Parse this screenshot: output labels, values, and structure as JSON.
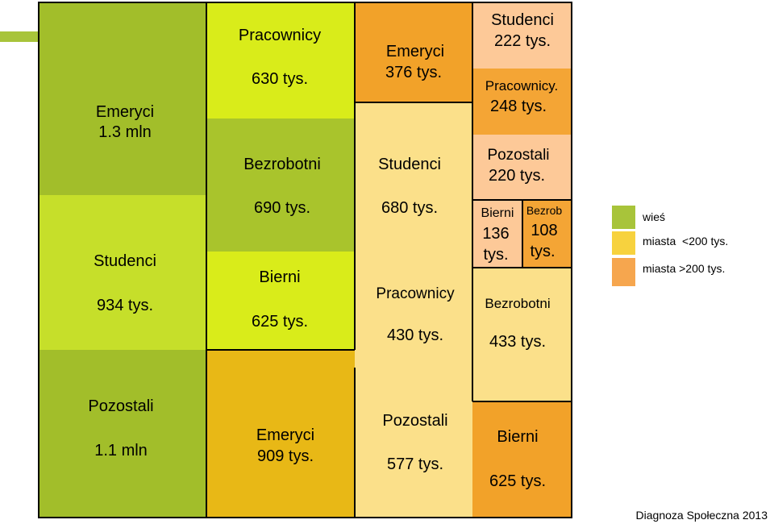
{
  "chart_data": {
    "type": "treemap",
    "cells": [
      {
        "label": "Emeryci",
        "value_text": "1.3 mln",
        "category": "wieś"
      },
      {
        "label": "Studenci",
        "value_text": "934 tys.",
        "category": "wieś"
      },
      {
        "label": "Pozostali",
        "value_text": "1.1 mln",
        "category": "wieś"
      },
      {
        "label": "Pracownicy",
        "value_text": "630 tys.",
        "category": "wieś"
      },
      {
        "label": "Bezrobotni",
        "value_text": "690 tys.",
        "category": "wieś"
      },
      {
        "label": "Bierni",
        "value_text": "625 tys.",
        "category": "wieś"
      },
      {
        "label": "Emeryci",
        "value_text": "376 tys.",
        "category": "miasta >200 tys."
      },
      {
        "label": "Studenci",
        "value_text": "680 tys.",
        "category": "miasta <200 tys."
      },
      {
        "label": "Pracownicy",
        "value_text": "430 tys.",
        "category": "miasta <200 tys."
      },
      {
        "label": "Studenci",
        "value_text": "222 tys.",
        "category": "miasta >200 tys."
      },
      {
        "label": "Pracownicy.",
        "value_text": "248 tys.",
        "category": "miasta >200 tys."
      },
      {
        "label": "Pozostali",
        "value_text": "220 tys.",
        "category": "miasta >200 tys."
      },
      {
        "label": "Bierni",
        "value_text": "136 tys.",
        "category": "miasta >200 tys."
      },
      {
        "label": "Bezrob",
        "value_text": "108 tys.",
        "category": "miasta >200 tys."
      },
      {
        "label": "Bezrobotni",
        "value_text": "433 tys.",
        "category": "miasta <200 tys."
      },
      {
        "label": "Emeryci",
        "value_text": "909 tys.",
        "category": "miasta <200 tys."
      },
      {
        "label": "Pozostali",
        "value_text": "577 tys.",
        "category": "miasta <200 tys."
      },
      {
        "label": "Bierni",
        "value_text": "625 tys.",
        "category": "miasta >200 tys."
      }
    ],
    "legend": [
      {
        "label": "wieś",
        "color": "#a8c43a"
      },
      {
        "label": "miasta  <200 tys.",
        "color": "#f7d23e"
      },
      {
        "label": "miasta >200 tys.",
        "color": "#f6a64e"
      }
    ]
  },
  "footer": "Diagnoza Społeczna 2013"
}
